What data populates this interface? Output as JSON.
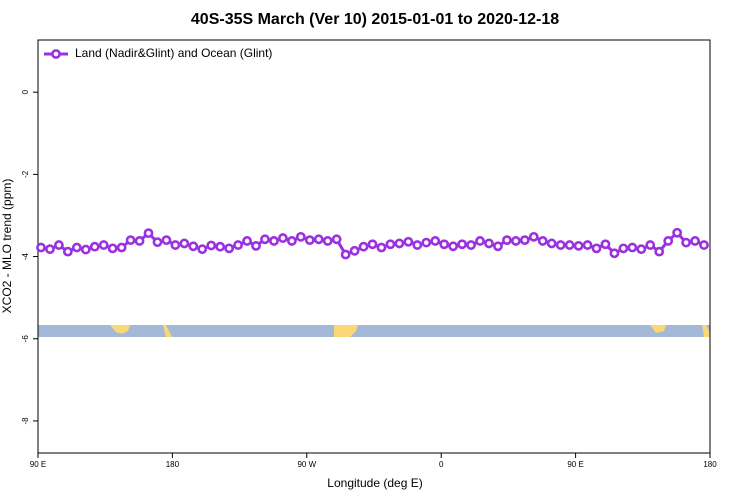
{
  "chart_data": {
    "type": "line",
    "title": "40S-35S March (Ver 10)   2015-01-01 to 2020-12-18",
    "x_label": "Longitude (deg E)",
    "y_label": "XCO2 - MLO trend (ppm)",
    "xlim": [
      90,
      540
    ],
    "xticks": [
      {
        "value": 90,
        "label": "90 E"
      },
      180,
      {
        "value": 270,
        "label": "90 W"
      },
      {
        "value": 360,
        "label": "0"
      },
      {
        "value": 450,
        "label": "90 E"
      },
      {
        "value": 540,
        "label": "180"
      }
    ],
    "ylim": [
      -8.78,
      1.27
    ],
    "yticks": [
      0,
      -2,
      -4,
      -6,
      -8
    ],
    "legend": "top-left",
    "x": [
      92,
      98,
      104,
      110,
      116,
      122,
      128,
      134,
      140,
      146,
      152,
      158,
      164,
      170,
      176,
      182,
      188,
      194,
      200,
      206,
      212,
      218,
      224,
      230,
      236,
      242,
      248,
      254,
      260,
      266,
      272,
      278,
      284,
      290,
      296,
      302,
      308,
      314,
      320,
      326,
      332,
      338,
      344,
      350,
      356,
      362,
      368,
      374,
      380,
      386,
      392,
      398,
      404,
      410,
      416,
      422,
      428,
      434,
      440,
      446,
      452,
      458,
      464,
      470,
      476,
      482,
      488,
      494,
      500,
      506,
      512,
      518,
      524,
      530,
      536
    ],
    "series": [
      {
        "name": "Land (Nadir&Glint) and Ocean (Glint)",
        "color": "#9b30e0",
        "values": [
          -3.78,
          -3.82,
          -3.72,
          -3.88,
          -3.78,
          -3.83,
          -3.76,
          -3.72,
          -3.8,
          -3.78,
          -3.6,
          -3.62,
          -3.43,
          -3.65,
          -3.6,
          -3.72,
          -3.68,
          -3.75,
          -3.82,
          -3.73,
          -3.76,
          -3.8,
          -3.72,
          -3.62,
          -3.74,
          -3.58,
          -3.62,
          -3.55,
          -3.62,
          -3.52,
          -3.6,
          -3.58,
          -3.62,
          -3.58,
          -3.95,
          -3.86,
          -3.76,
          -3.7,
          -3.78,
          -3.7,
          -3.68,
          -3.64,
          -3.72,
          -3.66,
          -3.62,
          -3.7,
          -3.75,
          -3.7,
          -3.72,
          -3.62,
          -3.68,
          -3.75,
          -3.6,
          -3.62,
          -3.6,
          -3.52,
          -3.62,
          -3.68,
          -3.72,
          -3.72,
          -3.74,
          -3.72,
          -3.8,
          -3.7,
          -3.92,
          -3.8,
          -3.78,
          -3.82,
          -3.72,
          -3.88,
          -3.62,
          -3.42,
          -3.66,
          -3.62,
          -3.72
        ]
      }
    ]
  }
}
